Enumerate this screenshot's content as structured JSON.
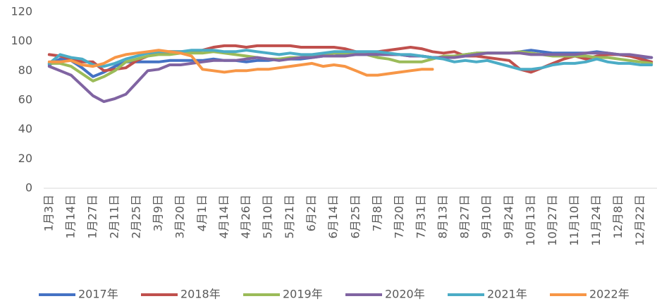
{
  "chart_data": {
    "type": "line",
    "categories": [
      "1月3日",
      null,
      "1月14日",
      null,
      "1月27日",
      null,
      "2月11日",
      null,
      "2月25日",
      null,
      "3月9日",
      null,
      "3月20日",
      null,
      "4月1日",
      null,
      "4月14日",
      null,
      "4月26日",
      null,
      "5月10日",
      null,
      "5月21日",
      null,
      "6月2日",
      null,
      "6月14日",
      null,
      "6月25日",
      null,
      "7月8日",
      null,
      "7月20日",
      null,
      "7月31日",
      null,
      "8月13日",
      null,
      "8月27日",
      null,
      "9月10日",
      null,
      "9月24日",
      null,
      "10月13日",
      null,
      "10月27日",
      null,
      "11月10日",
      null,
      "11月24日",
      null,
      "12月8日",
      null,
      "12月22日",
      null
    ],
    "series": [
      {
        "name": "2017年",
        "color": "#4472c4",
        "values": [
          84,
          88,
          87,
          82,
          76,
          79,
          83,
          86,
          86,
          86,
          86,
          87,
          87,
          87,
          87,
          88,
          87,
          87,
          86,
          87,
          87,
          88,
          88,
          88,
          89,
          90,
          90,
          91,
          91,
          91,
          91,
          91,
          91,
          90,
          90,
          89,
          89,
          90,
          91,
          92,
          92,
          92,
          92,
          93,
          94,
          93,
          92,
          92,
          92,
          92,
          93,
          92,
          91,
          90,
          89,
          89
        ]
      },
      {
        "name": "2018年",
        "color": "#c0504d",
        "values": [
          91,
          90,
          88,
          86,
          86,
          80,
          81,
          82,
          87,
          90,
          92,
          93,
          93,
          93,
          94,
          96,
          97,
          97,
          96,
          97,
          97,
          97,
          97,
          96,
          96,
          96,
          96,
          95,
          93,
          92,
          93,
          94,
          95,
          96,
          95,
          93,
          92,
          93,
          90,
          90,
          89,
          88,
          87,
          81,
          79,
          82,
          85,
          88,
          90,
          88,
          90,
          91,
          91,
          90,
          88,
          86
        ]
      },
      {
        "name": "2019年",
        "color": "#9bbb59",
        "values": [
          85,
          85,
          83,
          78,
          73,
          76,
          80,
          86,
          88,
          90,
          91,
          91,
          92,
          92,
          92,
          93,
          92,
          91,
          90,
          89,
          88,
          88,
          89,
          89,
          90,
          91,
          92,
          92,
          92,
          91,
          89,
          88,
          86,
          86,
          86,
          88,
          90,
          90,
          91,
          92,
          92,
          92,
          92,
          93,
          92,
          91,
          90,
          90,
          90,
          90,
          89,
          89,
          88,
          87,
          86,
          85
        ]
      },
      {
        "name": "2020年",
        "color": "#8064a2",
        "values": [
          83,
          80,
          77,
          70,
          63,
          59,
          61,
          64,
          72,
          80,
          81,
          84,
          84,
          85,
          86,
          87,
          87,
          87,
          88,
          89,
          88,
          87,
          88,
          89,
          89,
          90,
          90,
          90,
          91,
          91,
          91,
          91,
          91,
          90,
          90,
          89,
          89,
          89,
          90,
          91,
          92,
          92,
          92,
          92,
          91,
          91,
          91,
          91,
          91,
          92,
          92,
          92,
          91,
          91,
          90,
          89
        ]
      },
      {
        "name": "2021年",
        "color": "#4bacc6",
        "values": [
          85,
          91,
          89,
          88,
          84,
          83,
          85,
          88,
          90,
          92,
          93,
          93,
          93,
          94,
          94,
          94,
          93,
          93,
          94,
          93,
          92,
          91,
          92,
          91,
          91,
          92,
          93,
          93,
          93,
          93,
          93,
          92,
          91,
          91,
          90,
          89,
          88,
          86,
          87,
          86,
          87,
          85,
          83,
          81,
          81,
          82,
          84,
          85,
          85,
          86,
          88,
          86,
          85,
          85,
          84,
          84
        ]
      },
      {
        "name": "2022年",
        "color": "#f79646",
        "values": [
          86,
          86,
          87,
          84,
          83,
          85,
          89,
          91,
          92,
          93,
          94,
          93,
          92,
          90,
          81,
          80,
          79,
          80,
          80,
          81,
          81,
          82,
          83,
          84,
          85,
          83,
          84,
          83,
          80,
          77,
          77,
          78,
          79,
          80,
          81,
          81,
          null,
          null,
          null,
          null,
          null,
          null,
          null,
          null,
          null,
          null,
          null,
          null,
          null,
          null,
          null,
          null,
          null,
          null,
          null,
          null
        ]
      }
    ],
    "ylim": [
      0,
      120
    ],
    "yticks": [
      0,
      20,
      40,
      60,
      80,
      100,
      120
    ]
  }
}
